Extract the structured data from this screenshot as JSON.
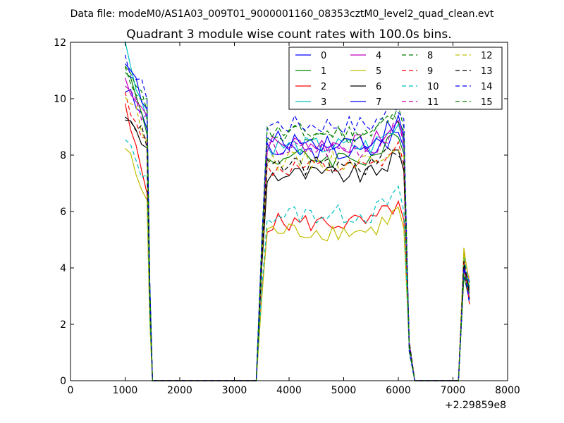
{
  "chart_data": {
    "type": "line",
    "suptitle": "Data file: modeM0/AS1A03_009T01_9000001160_08353cztM0_level2_quad_clean.evt",
    "title": "Quadrant 3 module wise count rates with 100.0s bins.",
    "xlabel": "",
    "ylabel": "",
    "x_offset_label": "+2.29859e8",
    "xlim": [
      0,
      8000
    ],
    "ylim": [
      0,
      12
    ],
    "xticks": [
      0,
      1000,
      2000,
      3000,
      4000,
      5000,
      6000,
      7000,
      8000
    ],
    "yticks": [
      0,
      2,
      4,
      6,
      8,
      10,
      12
    ],
    "grid": false,
    "legend_position": "top-right",
    "series": [
      {
        "name": "0",
        "color": "#0000ff",
        "dash": "solid",
        "shape": "hi",
        "base": 10.4,
        "mid": 8.1
      },
      {
        "name": "1",
        "color": "#008000",
        "dash": "solid",
        "shape": "hi",
        "base": 11.2,
        "mid": 7.9
      },
      {
        "name": "2",
        "color": "#ff0000",
        "dash": "solid",
        "shape": "low",
        "base": 9.6,
        "mid": 5.6
      },
      {
        "name": "3",
        "color": "#00bfbf",
        "dash": "solid",
        "shape": "hi",
        "base": 11.9,
        "mid": 8.3
      },
      {
        "name": "4",
        "color": "#bf00bf",
        "dash": "solid",
        "shape": "hi",
        "base": 10.7,
        "mid": 8.4
      },
      {
        "name": "5",
        "color": "#bfbf00",
        "dash": "solid",
        "shape": "low",
        "base": 8.3,
        "mid": 5.3
      },
      {
        "name": "6",
        "color": "#000000",
        "dash": "solid",
        "shape": "hi",
        "base": 9.4,
        "mid": 7.3
      },
      {
        "name": "7",
        "color": "#0000ff",
        "dash": "solid",
        "shape": "hi",
        "base": 11.5,
        "mid": 8.5
      },
      {
        "name": "8",
        "color": "#008000",
        "dash": "dashed",
        "shape": "hi",
        "base": 10.9,
        "mid": 8.8
      },
      {
        "name": "9",
        "color": "#ff0000",
        "dash": "dashed",
        "shape": "hi",
        "base": 10.1,
        "mid": 7.5
      },
      {
        "name": "10",
        "color": "#00bfbf",
        "dash": "dashed",
        "shape": "low",
        "base": 8.5,
        "mid": 5.9
      },
      {
        "name": "11",
        "color": "#bf00bf",
        "dash": "dashed",
        "shape": "hi",
        "base": 10.5,
        "mid": 8.2
      },
      {
        "name": "12",
        "color": "#bfbf00",
        "dash": "dashed",
        "shape": "hi",
        "base": 10.2,
        "mid": 7.8
      },
      {
        "name": "13",
        "color": "#000000",
        "dash": "dashed",
        "shape": "hi",
        "base": 9.6,
        "mid": 7.6
      },
      {
        "name": "14",
        "color": "#0000ff",
        "dash": "dashed",
        "shape": "hi",
        "base": 11.3,
        "mid": 9.1
      },
      {
        "name": "15",
        "color": "#008000",
        "dash": "dashed",
        "shape": "hi",
        "base": 11.0,
        "mid": 8.7
      }
    ]
  }
}
